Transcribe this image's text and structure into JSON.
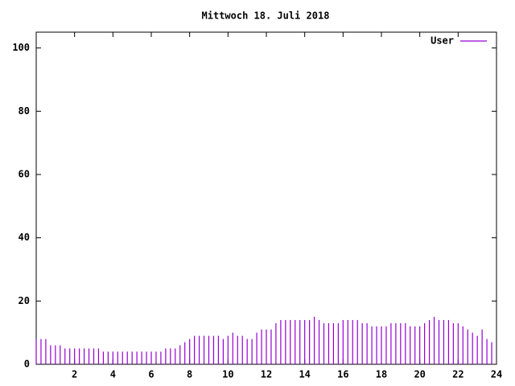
{
  "chart_data": {
    "type": "impulse",
    "title": "Mittwoch 18. Juli 2018",
    "x": [
      0,
      0.25,
      0.5,
      0.75,
      1,
      1.25,
      1.5,
      1.75,
      2,
      2.25,
      2.5,
      2.75,
      3,
      3.25,
      3.5,
      3.75,
      4,
      4.25,
      4.5,
      4.75,
      5,
      5.25,
      5.5,
      5.75,
      6,
      6.25,
      6.5,
      6.75,
      7,
      7.25,
      7.5,
      7.75,
      8,
      8.25,
      8.5,
      8.75,
      9,
      9.25,
      9.5,
      9.75,
      10,
      10.25,
      10.5,
      10.75,
      11,
      11.25,
      11.5,
      11.75,
      12,
      12.25,
      12.5,
      12.75,
      13,
      13.25,
      13.5,
      13.75,
      14,
      14.25,
      14.5,
      14.75,
      15,
      15.25,
      15.5,
      15.75,
      16,
      16.25,
      16.5,
      16.75,
      17,
      17.25,
      17.5,
      17.75,
      18,
      18.25,
      18.5,
      18.75,
      19,
      19.25,
      19.5,
      19.75,
      20,
      20.25,
      20.5,
      20.75,
      21,
      21.25,
      21.5,
      21.75,
      22,
      22.25,
      22.5,
      22.75,
      23,
      23.25,
      23.5,
      23.75
    ],
    "series": [
      {
        "name": "User",
        "color": "#9400d3",
        "values": [
          8,
          8,
          8,
          6,
          6,
          6,
          5,
          5,
          5,
          5,
          5,
          5,
          5,
          5,
          4,
          4,
          4,
          4,
          4,
          4,
          4,
          4,
          4,
          4,
          4,
          4,
          4,
          5,
          5,
          5,
          6,
          7,
          8,
          9,
          9,
          9,
          9,
          9,
          9,
          8,
          9,
          10,
          9,
          9,
          8,
          8,
          10,
          11,
          11,
          11,
          13,
          14,
          14,
          14,
          14,
          14,
          14,
          14,
          15,
          14,
          13,
          13,
          13,
          13,
          14,
          14,
          14,
          14,
          13,
          13,
          12,
          12,
          12,
          12,
          13,
          13,
          13,
          13,
          12,
          12,
          12,
          13,
          14,
          15,
          14,
          14,
          14,
          13,
          13,
          12,
          11,
          10,
          9,
          11,
          8,
          7
        ]
      }
    ],
    "xlim": [
      0,
      24
    ],
    "xticks": [
      2,
      4,
      6,
      8,
      10,
      12,
      14,
      16,
      18,
      20,
      22,
      24
    ],
    "ylim": [
      0,
      105
    ],
    "yticks": [
      0,
      20,
      40,
      60,
      80,
      100
    ],
    "legend": "top right"
  }
}
